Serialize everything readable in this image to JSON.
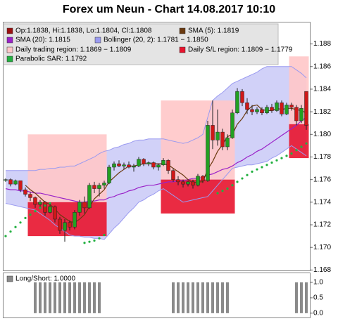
{
  "chart_data": {
    "type": "candlestick",
    "title": "Forex um Neun - Chart 14.08.2017 10:10",
    "ylim": [
      1.1679,
      1.1899
    ],
    "yticks": [
      1.168,
      {
        "value": 1.17,
        "label": "1.170"
      },
      1.172,
      1.174,
      1.176,
      1.178,
      {
        "value": 1.18,
        "label": "1.180"
      },
      1.182,
      1.184,
      1.186,
      1.188
    ],
    "ohlc": {
      "label": "Op:1.1838, Hi:1.1838, Lo:1.1804, Cl:1.1808",
      "color": "#9b1010",
      "up_color": "#22a022",
      "down_color": "#d01818",
      "open": [
        1.176,
        1.176,
        1.1756,
        1.1759,
        1.1751,
        1.1747,
        1.1744,
        1.1738,
        1.174,
        1.1731,
        1.1736,
        1.1725,
        1.1715,
        1.1722,
        1.1718,
        1.1731,
        1.174,
        1.1735,
        1.1755,
        1.1752,
        1.1755,
        1.1757,
        1.1771,
        1.1774,
        1.1772,
        1.1773,
        1.1771,
        1.1772,
        1.1778,
        1.1774,
        1.1775,
        1.1771,
        1.1773,
        1.1777,
        1.1768,
        1.176,
        1.1758,
        1.1756,
        1.1758,
        1.1755,
        1.1763,
        1.1759,
        1.1808,
        1.1795,
        1.1802,
        1.1789,
        1.1797,
        1.1819,
        1.1838,
        1.1828,
        1.1822,
        1.182,
        1.1822,
        1.1819,
        1.1824,
        1.1821,
        1.1828,
        1.1818,
        1.1826,
        1.1824,
        1.1812,
        1.1838
      ],
      "high": [
        1.1761,
        1.1761,
        1.176,
        1.1759,
        1.1753,
        1.1749,
        1.1745,
        1.1742,
        1.1741,
        1.1738,
        1.1737,
        1.1727,
        1.1725,
        1.1724,
        1.1733,
        1.1742,
        1.1745,
        1.1757,
        1.1758,
        1.1757,
        1.1759,
        1.1773,
        1.1776,
        1.1777,
        1.1775,
        1.1776,
        1.1774,
        1.178,
        1.1779,
        1.1776,
        1.1776,
        1.1774,
        1.1779,
        1.1778,
        1.177,
        1.1763,
        1.176,
        1.1759,
        1.176,
        1.1765,
        1.1764,
        1.1812,
        1.183,
        1.1822,
        1.1805,
        1.18,
        1.1822,
        1.1841,
        1.184,
        1.1832,
        1.1826,
        1.1824,
        1.1824,
        1.1826,
        1.1827,
        1.183,
        1.183,
        1.1828,
        1.1828,
        1.1826,
        1.1826,
        1.1838
      ],
      "low": [
        1.1758,
        1.1754,
        1.1755,
        1.1749,
        1.1745,
        1.1741,
        1.1735,
        1.1734,
        1.1728,
        1.173,
        1.1722,
        1.1712,
        1.1705,
        1.1715,
        1.1716,
        1.1728,
        1.173,
        1.1734,
        1.1748,
        1.1745,
        1.1752,
        1.1756,
        1.1768,
        1.1771,
        1.1769,
        1.177,
        1.1767,
        1.1771,
        1.1772,
        1.1772,
        1.1769,
        1.1768,
        1.1772,
        1.1765,
        1.1758,
        1.1755,
        1.1753,
        1.1754,
        1.1752,
        1.1754,
        1.1757,
        1.1758,
        1.1787,
        1.179,
        1.1786,
        1.1786,
        1.1796,
        1.1818,
        1.1825,
        1.1818,
        1.1817,
        1.1818,
        1.1817,
        1.1818,
        1.1819,
        1.182,
        1.1816,
        1.1817,
        1.1821,
        1.1808,
        1.181,
        1.1804
      ],
      "close": [
        1.176,
        1.1756,
        1.1759,
        1.1751,
        1.1747,
        1.1744,
        1.1738,
        1.174,
        1.1731,
        1.1736,
        1.1725,
        1.1715,
        1.1722,
        1.1718,
        1.1731,
        1.174,
        1.1735,
        1.1755,
        1.1752,
        1.1755,
        1.1757,
        1.1771,
        1.1774,
        1.1772,
        1.1773,
        1.1771,
        1.1772,
        1.1778,
        1.1774,
        1.1775,
        1.1771,
        1.1773,
        1.1777,
        1.1768,
        1.176,
        1.1758,
        1.1756,
        1.1758,
        1.1755,
        1.1763,
        1.1759,
        1.1808,
        1.1795,
        1.1802,
        1.1789,
        1.1797,
        1.1819,
        1.1838,
        1.1828,
        1.1822,
        1.182,
        1.1822,
        1.1819,
        1.1824,
        1.1821,
        1.1828,
        1.1818,
        1.1826,
        1.1824,
        1.1812,
        1.1823,
        1.1808
      ]
    },
    "sma5": {
      "label": "SMA (5): 1.1819",
      "color": "#6b3a10",
      "values": [
        null,
        null,
        null,
        null,
        1.1755,
        1.1751,
        1.1748,
        1.1744,
        1.174,
        1.1738,
        1.1734,
        1.1729,
        1.1726,
        1.1723,
        1.1722,
        1.1725,
        1.1729,
        1.1736,
        1.1743,
        1.1747,
        1.1751,
        1.1758,
        1.1762,
        1.1766,
        1.1769,
        1.1772,
        1.1772,
        1.1773,
        1.1774,
        1.1774,
        1.1774,
        1.1774,
        1.1774,
        1.1773,
        1.177,
        1.1767,
        1.1764,
        1.176,
        1.1757,
        1.1758,
        1.1758,
        1.1769,
        1.1776,
        1.1785,
        1.1791,
        1.1798,
        1.18,
        1.1809,
        1.1814,
        1.1821,
        1.1825,
        1.1826,
        1.1822,
        1.1821,
        1.1821,
        1.1823,
        1.1822,
        1.1823,
        1.1823,
        1.1822,
        1.1821,
        1.1819
      ]
    },
    "sma20": {
      "label": "SMA (20): 1.1815",
      "color": "#9a22c8",
      "values": [
        1.1752,
        1.1751,
        1.1751,
        1.175,
        1.175,
        1.1749,
        1.1748,
        1.1748,
        1.1747,
        1.1746,
        1.1745,
        1.1744,
        1.1743,
        1.1742,
        1.1741,
        1.174,
        1.174,
        1.1741,
        1.1741,
        1.1742,
        1.1742,
        1.1744,
        1.1745,
        1.1747,
        1.1748,
        1.175,
        1.1751,
        1.1753,
        1.1754,
        1.1755,
        1.1755,
        1.1756,
        1.1757,
        1.1758,
        1.1758,
        1.1759,
        1.1759,
        1.176,
        1.1761,
        1.1761,
        1.1762,
        1.1764,
        1.1765,
        1.1767,
        1.1769,
        1.177,
        1.1772,
        1.1775,
        1.1777,
        1.178,
        1.1782,
        1.1785,
        1.1787,
        1.179,
        1.1793,
        1.1796,
        1.1799,
        1.1802,
        1.1805,
        1.1808,
        1.1812,
        1.1815
      ]
    },
    "bollinger": {
      "label": "Bollinger (20, 2): 1.1781 − 1.1850",
      "color": "#9a9af0",
      "upper": [
        1.1768,
        1.1768,
        1.1768,
        1.1768,
        1.1768,
        1.1768,
        1.1768,
        1.1769,
        1.1769,
        1.177,
        1.177,
        1.1771,
        1.1771,
        1.1772,
        1.1772,
        1.1774,
        1.1776,
        1.1778,
        1.178,
        1.1783,
        1.1785,
        1.1786,
        1.1788,
        1.1789,
        1.1791,
        1.1792,
        1.1794,
        1.1795,
        1.1795,
        1.1796,
        1.1796,
        1.1796,
        1.1796,
        1.1795,
        1.1794,
        1.1793,
        1.1792,
        1.1793,
        1.1795,
        1.1797,
        1.18,
        1.1815,
        1.183,
        1.1834,
        1.1837,
        1.1841,
        1.1845,
        1.1847,
        1.1849,
        1.1851,
        1.1853,
        1.1855,
        1.1858,
        1.186,
        1.186,
        1.186,
        1.186,
        1.186,
        1.186,
        1.1857,
        1.1854,
        1.185
      ],
      "lower": [
        1.1739,
        1.1738,
        1.1737,
        1.1736,
        1.1735,
        1.1734,
        1.1733,
        1.173,
        1.1727,
        1.1724,
        1.172,
        1.1717,
        1.1714,
        1.1711,
        1.171,
        1.171,
        1.1709,
        1.1709,
        1.1708,
        1.1708,
        1.1707,
        1.1712,
        1.1717,
        1.1721,
        1.1726,
        1.1731,
        1.1735,
        1.174,
        1.1742,
        1.1745,
        1.1747,
        1.175,
        1.1752,
        1.1749,
        1.1746,
        1.1743,
        1.174,
        1.1741,
        1.1742,
        1.1743,
        1.1744,
        1.1745,
        1.175,
        1.1755,
        1.176,
        1.1765,
        1.177,
        1.1771,
        1.1772,
        1.1773,
        1.1773,
        1.1774,
        1.1775,
        1.1776,
        1.1779,
        1.1781,
        1.1784,
        1.1787,
        1.179,
        1.1787,
        1.1784,
        1.1781
      ]
    },
    "trading_region": {
      "label": "Daily trading region: 1.1869 − 1.1809",
      "color": "#ffc6c8",
      "regions": [
        {
          "start": 5,
          "end": 20,
          "low": 1.174,
          "high": 1.18
        },
        {
          "start": 32,
          "end": 46,
          "low": 1.176,
          "high": 1.183
        },
        {
          "start": 58,
          "end": 61,
          "low": 1.1809,
          "high": 1.1869
        }
      ]
    },
    "sl_region": {
      "label": "Daily S/L region: 1.1809 − 1.1779",
      "color": "#e8142e",
      "regions": [
        {
          "start": 5,
          "end": 20,
          "low": 1.171,
          "high": 1.174
        },
        {
          "start": 32,
          "end": 46,
          "low": 1.173,
          "high": 1.176
        },
        {
          "start": 58,
          "end": 61,
          "low": 1.1779,
          "high": 1.1809
        }
      ]
    },
    "sar": {
      "label": "Parabolic SAR: 1.1792",
      "color": "#22b040",
      "values": [
        1.171,
        1.1714,
        1.1718,
        1.1722,
        1.1726,
        1.1729,
        1.1732,
        1.1735,
        1.1737,
        1.1739,
        null,
        null,
        null,
        null,
        null,
        null,
        1.1704,
        1.1705,
        1.1706,
        1.1708,
        1.1711,
        null,
        null,
        null,
        null,
        null,
        null,
        null,
        null,
        null,
        null,
        null,
        null,
        null,
        null,
        null,
        null,
        null,
        null,
        null,
        null,
        null,
        null,
        1.1748,
        1.175,
        1.1752,
        1.1755,
        1.1758,
        1.1761,
        1.1764,
        1.1767,
        1.1769,
        1.1771,
        1.1773,
        1.1775,
        1.1777,
        1.1779,
        1.1781,
        1.1783,
        1.1786,
        1.1789,
        1.1792
      ]
    },
    "panel": {
      "type": "bar",
      "label": "Long/Short: 1.0000",
      "color": "#8a8a8a",
      "ylim": [
        -0.14,
        1.32
      ],
      "yticks": [
        {
          "value": 0,
          "label": "0.0"
        },
        {
          "value": 0.5,
          "label": "0.5"
        },
        {
          "value": 1,
          "label": "1.0"
        }
      ],
      "values": [
        0,
        0,
        0,
        0,
        0,
        0,
        1,
        1,
        1,
        1,
        1,
        1,
        1,
        1,
        1,
        1,
        1,
        1,
        1,
        1,
        0,
        0,
        0,
        0,
        0,
        0,
        0,
        0,
        0,
        0,
        0,
        0,
        0,
        0,
        1,
        1,
        1,
        1,
        1,
        1,
        1,
        1,
        1,
        1,
        1,
        1,
        0,
        0,
        0,
        0,
        0,
        0,
        0,
        0,
        0,
        0,
        0,
        0,
        0,
        1,
        1,
        1
      ]
    }
  }
}
